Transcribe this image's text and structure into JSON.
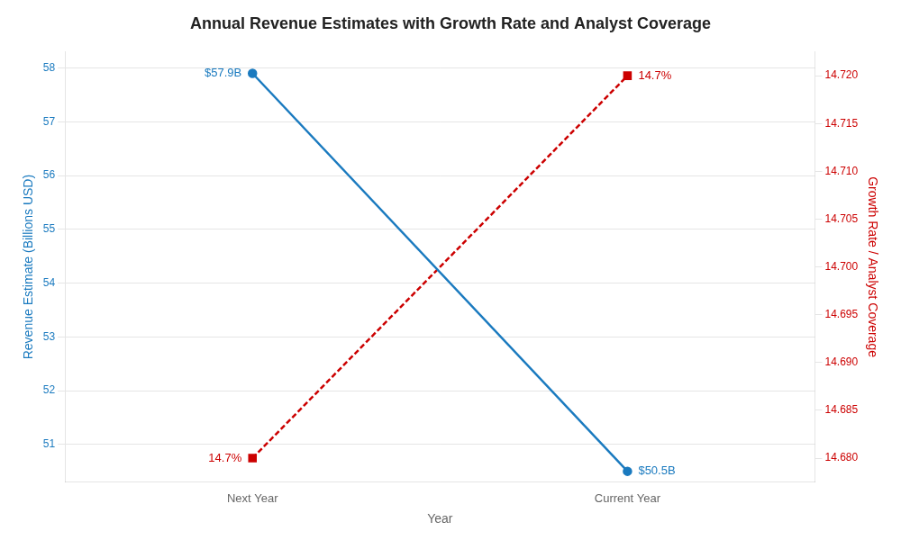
{
  "chart_data": {
    "type": "line",
    "title": "Annual Revenue Estimates with Growth Rate and Analyst Coverage",
    "xlabel": "Year",
    "ylabel": "Revenue Estimate (Billions USD)",
    "y2label": "Growth Rate / Analyst Coverage",
    "categories": [
      "Next Year",
      "Current Year"
    ],
    "series": [
      {
        "color": "#1a7abf",
        "marker": "circle",
        "line_style": "solid",
        "values": [
          57.9,
          50.5
        ],
        "value_labels": [
          "$57.9B",
          "$50.5B"
        ]
      },
      {
        "color": "#cc0000",
        "marker": "square",
        "line_style": "dashed",
        "axis": "y2",
        "values": [
          14.68,
          14.72
        ],
        "value_labels": [
          "14.7%",
          "14.7%"
        ]
      }
    ],
    "ylim": [
      50.3,
      58.3
    ],
    "yticks": [
      51,
      52,
      53,
      54,
      55,
      56,
      57,
      58
    ],
    "y2lim": [
      14.6775,
      14.7225
    ],
    "y2ticks": [
      {
        "value": 14.68,
        "label": "14.680"
      },
      {
        "value": 14.685,
        "label": "14.685"
      },
      {
        "value": 14.69,
        "label": "14.690"
      },
      {
        "value": 14.695,
        "label": "14.695"
      },
      {
        "value": 14.7,
        "label": "14.700"
      },
      {
        "value": 14.705,
        "label": "14.705"
      },
      {
        "value": 14.71,
        "label": "14.710"
      },
      {
        "value": 14.715,
        "label": "14.715"
      },
      {
        "value": 14.72,
        "label": "14.720"
      }
    ],
    "grid": true,
    "data_labels": true
  }
}
